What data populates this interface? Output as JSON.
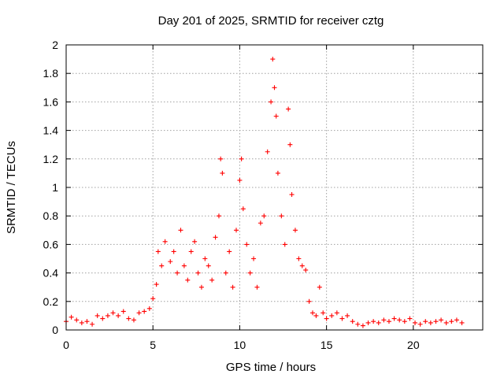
{
  "chart_data": {
    "type": "scatter",
    "title": "Day 201 of 2025, SRMTID for receiver cztg",
    "xlabel": "GPS time / hours",
    "ylabel": "SRMTID / TECUs",
    "xlim": [
      0,
      24
    ],
    "ylim": [
      0,
      2
    ],
    "x_ticks": [
      "0",
      "5",
      "10",
      "15",
      "20"
    ],
    "y_ticks": [
      "0",
      "0.2",
      "0.4",
      "0.6",
      "0.8",
      "1",
      "1.2",
      "1.4",
      "1.6",
      "1.8",
      "2"
    ],
    "grid": true,
    "marker": "plus",
    "colors": {
      "series": "#ff0000",
      "grid": "#a0a0a0",
      "axes": "#000000"
    },
    "series": [
      {
        "name": "SRMTID",
        "points": [
          [
            0.0,
            0.06
          ],
          [
            0.3,
            0.09
          ],
          [
            0.6,
            0.07
          ],
          [
            0.9,
            0.05
          ],
          [
            1.2,
            0.06
          ],
          [
            1.5,
            0.04
          ],
          [
            1.8,
            0.1
          ],
          [
            2.1,
            0.08
          ],
          [
            2.4,
            0.1
          ],
          [
            2.7,
            0.12
          ],
          [
            3.0,
            0.1
          ],
          [
            3.3,
            0.13
          ],
          [
            3.6,
            0.08
          ],
          [
            3.9,
            0.07
          ],
          [
            4.2,
            0.12
          ],
          [
            4.5,
            0.13
          ],
          [
            4.8,
            0.15
          ],
          [
            5.0,
            0.22
          ],
          [
            5.2,
            0.32
          ],
          [
            5.3,
            0.55
          ],
          [
            5.5,
            0.45
          ],
          [
            5.7,
            0.62
          ],
          [
            6.0,
            0.48
          ],
          [
            6.2,
            0.55
          ],
          [
            6.4,
            0.4
          ],
          [
            6.6,
            0.7
          ],
          [
            6.8,
            0.45
          ],
          [
            7.0,
            0.35
          ],
          [
            7.2,
            0.55
          ],
          [
            7.4,
            0.62
          ],
          [
            7.6,
            0.4
          ],
          [
            7.8,
            0.3
          ],
          [
            8.0,
            0.5
          ],
          [
            8.2,
            0.45
          ],
          [
            8.4,
            0.35
          ],
          [
            8.6,
            0.65
          ],
          [
            8.8,
            0.8
          ],
          [
            8.9,
            1.2
          ],
          [
            9.0,
            1.1
          ],
          [
            9.2,
            0.4
          ],
          [
            9.4,
            0.55
          ],
          [
            9.6,
            0.3
          ],
          [
            9.8,
            0.7
          ],
          [
            10.0,
            1.05
          ],
          [
            10.1,
            1.2
          ],
          [
            10.2,
            0.85
          ],
          [
            10.4,
            0.6
          ],
          [
            10.6,
            0.4
          ],
          [
            10.8,
            0.5
          ],
          [
            11.0,
            0.3
          ],
          [
            11.2,
            0.75
          ],
          [
            11.4,
            0.8
          ],
          [
            11.6,
            1.25
          ],
          [
            11.8,
            1.6
          ],
          [
            11.9,
            1.9
          ],
          [
            12.0,
            1.7
          ],
          [
            12.1,
            1.5
          ],
          [
            12.2,
            1.1
          ],
          [
            12.4,
            0.8
          ],
          [
            12.6,
            0.6
          ],
          [
            12.8,
            1.55
          ],
          [
            12.9,
            1.3
          ],
          [
            13.0,
            0.95
          ],
          [
            13.2,
            0.7
          ],
          [
            13.4,
            0.5
          ],
          [
            13.6,
            0.45
          ],
          [
            13.8,
            0.42
          ],
          [
            14.0,
            0.2
          ],
          [
            14.2,
            0.12
          ],
          [
            14.4,
            0.1
          ],
          [
            14.6,
            0.3
          ],
          [
            14.8,
            0.12
          ],
          [
            15.0,
            0.08
          ],
          [
            15.3,
            0.1
          ],
          [
            15.6,
            0.12
          ],
          [
            15.9,
            0.08
          ],
          [
            16.2,
            0.1
          ],
          [
            16.5,
            0.06
          ],
          [
            16.8,
            0.04
          ],
          [
            17.1,
            0.03
          ],
          [
            17.4,
            0.05
          ],
          [
            17.7,
            0.06
          ],
          [
            18.0,
            0.05
          ],
          [
            18.3,
            0.07
          ],
          [
            18.6,
            0.06
          ],
          [
            18.9,
            0.08
          ],
          [
            19.2,
            0.07
          ],
          [
            19.5,
            0.06
          ],
          [
            19.8,
            0.08
          ],
          [
            20.1,
            0.05
          ],
          [
            20.4,
            0.04
          ],
          [
            20.7,
            0.06
          ],
          [
            21.0,
            0.05
          ],
          [
            21.3,
            0.06
          ],
          [
            21.6,
            0.07
          ],
          [
            21.9,
            0.05
          ],
          [
            22.2,
            0.06
          ],
          [
            22.5,
            0.07
          ],
          [
            22.8,
            0.05
          ]
        ]
      }
    ]
  }
}
